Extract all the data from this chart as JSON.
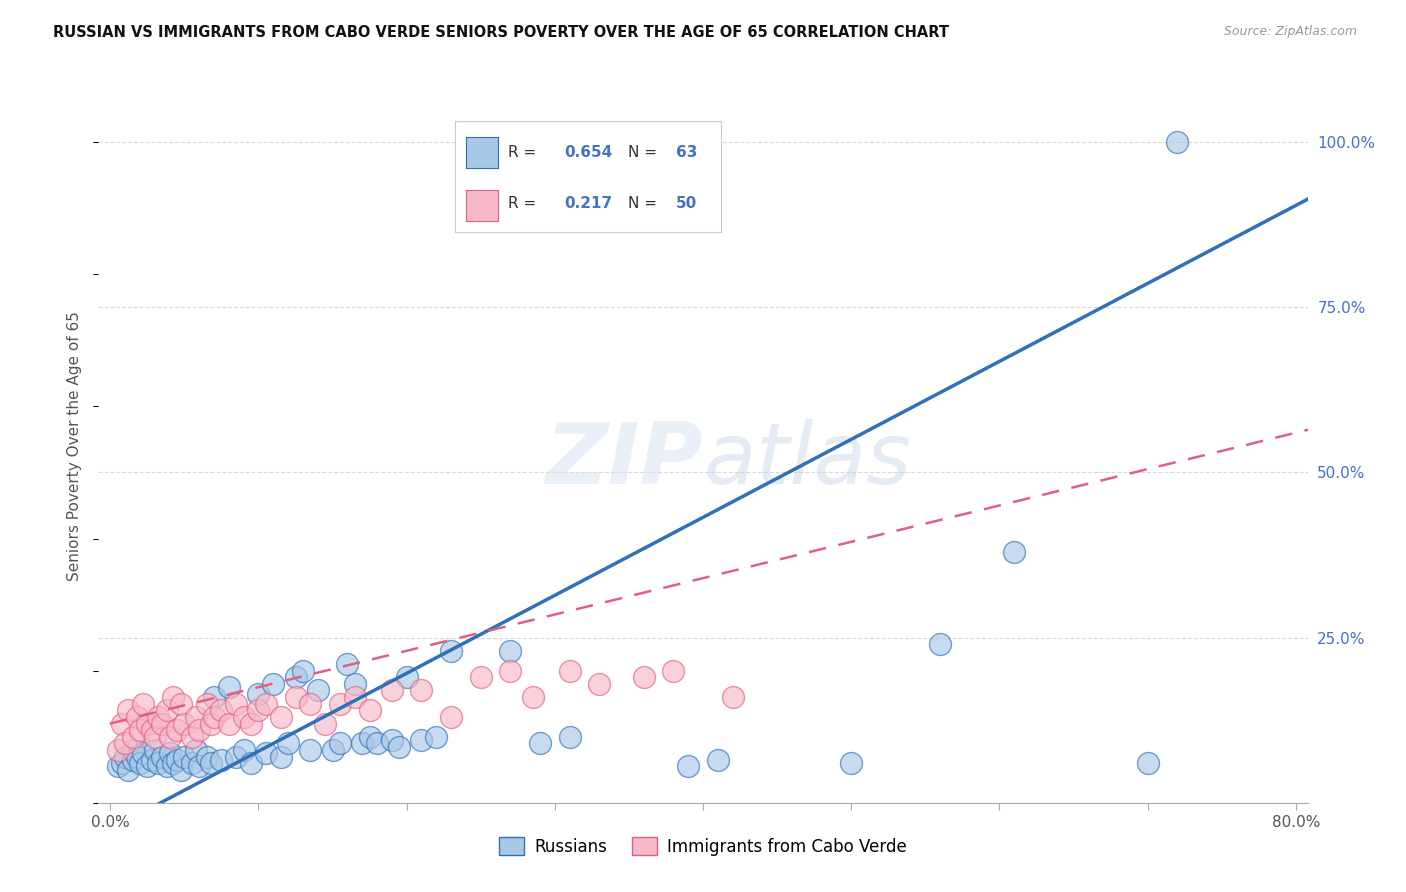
{
  "title": "RUSSIAN VS IMMIGRANTS FROM CABO VERDE SENIORS POVERTY OVER THE AGE OF 65 CORRELATION CHART",
  "source": "Source: ZipAtlas.com",
  "ylabel": "Seniors Poverty Over the Age of 65",
  "xmin": 0.0,
  "xmax": 0.8,
  "ymin": 0.0,
  "ymax": 1.08,
  "xticks": [
    0.0,
    0.1,
    0.2,
    0.3,
    0.4,
    0.5,
    0.6,
    0.7,
    0.8
  ],
  "xticklabels": [
    "0.0%",
    "",
    "",
    "",
    "",
    "",
    "",
    "",
    "80.0%"
  ],
  "yticks": [
    0.0,
    0.25,
    0.5,
    0.75,
    1.0
  ],
  "yticklabels": [
    "",
    "25.0%",
    "50.0%",
    "75.0%",
    "100.0%"
  ],
  "background_color": "#ffffff",
  "grid_color": "#d8d8d8",
  "russian_color": "#a8c8e8",
  "cabo_color": "#f8b8c8",
  "russian_line_color": "#3070b8",
  "cabo_line_color": "#e06080",
  "legend_R_russian": "0.654",
  "legend_N_russian": "63",
  "legend_R_cabo": "0.217",
  "legend_N_cabo": "50",
  "russian_line_slope": 1.18,
  "russian_line_intercept": -0.04,
  "cabo_line_slope": 0.55,
  "cabo_line_intercept": 0.12,
  "russians_x": [
    0.005,
    0.008,
    0.01,
    0.012,
    0.015,
    0.015,
    0.018,
    0.02,
    0.022,
    0.025,
    0.028,
    0.03,
    0.032,
    0.035,
    0.038,
    0.04,
    0.042,
    0.045,
    0.048,
    0.05,
    0.055,
    0.058,
    0.06,
    0.065,
    0.068,
    0.07,
    0.075,
    0.08,
    0.085,
    0.09,
    0.095,
    0.1,
    0.105,
    0.11,
    0.115,
    0.12,
    0.125,
    0.13,
    0.135,
    0.14,
    0.15,
    0.155,
    0.16,
    0.165,
    0.17,
    0.175,
    0.18,
    0.19,
    0.195,
    0.2,
    0.21,
    0.22,
    0.23,
    0.27,
    0.29,
    0.31,
    0.39,
    0.41,
    0.5,
    0.56,
    0.61,
    0.7,
    0.72
  ],
  "russians_y": [
    0.055,
    0.06,
    0.07,
    0.05,
    0.065,
    0.08,
    0.07,
    0.06,
    0.075,
    0.055,
    0.065,
    0.08,
    0.06,
    0.07,
    0.055,
    0.075,
    0.06,
    0.065,
    0.05,
    0.07,
    0.06,
    0.08,
    0.055,
    0.07,
    0.06,
    0.16,
    0.065,
    0.175,
    0.07,
    0.08,
    0.06,
    0.165,
    0.075,
    0.18,
    0.07,
    0.09,
    0.19,
    0.2,
    0.08,
    0.17,
    0.08,
    0.09,
    0.21,
    0.18,
    0.09,
    0.1,
    0.09,
    0.095,
    0.085,
    0.19,
    0.095,
    0.1,
    0.23,
    0.23,
    0.09,
    0.1,
    0.055,
    0.065,
    0.06,
    0.24,
    0.38,
    0.06,
    1.0
  ],
  "cabo_x": [
    0.005,
    0.008,
    0.01,
    0.012,
    0.015,
    0.018,
    0.02,
    0.022,
    0.025,
    0.028,
    0.03,
    0.032,
    0.035,
    0.038,
    0.04,
    0.042,
    0.045,
    0.048,
    0.05,
    0.055,
    0.058,
    0.06,
    0.065,
    0.068,
    0.07,
    0.075,
    0.08,
    0.085,
    0.09,
    0.095,
    0.1,
    0.105,
    0.115,
    0.125,
    0.135,
    0.145,
    0.155,
    0.165,
    0.175,
    0.19,
    0.21,
    0.23,
    0.25,
    0.27,
    0.285,
    0.31,
    0.33,
    0.36,
    0.38,
    0.42
  ],
  "cabo_y": [
    0.08,
    0.12,
    0.09,
    0.14,
    0.1,
    0.13,
    0.11,
    0.15,
    0.12,
    0.11,
    0.1,
    0.13,
    0.12,
    0.14,
    0.1,
    0.16,
    0.11,
    0.15,
    0.12,
    0.1,
    0.13,
    0.11,
    0.15,
    0.12,
    0.13,
    0.14,
    0.12,
    0.15,
    0.13,
    0.12,
    0.14,
    0.15,
    0.13,
    0.16,
    0.15,
    0.12,
    0.15,
    0.16,
    0.14,
    0.17,
    0.17,
    0.13,
    0.19,
    0.2,
    0.16,
    0.2,
    0.18,
    0.19,
    0.2,
    0.16
  ]
}
